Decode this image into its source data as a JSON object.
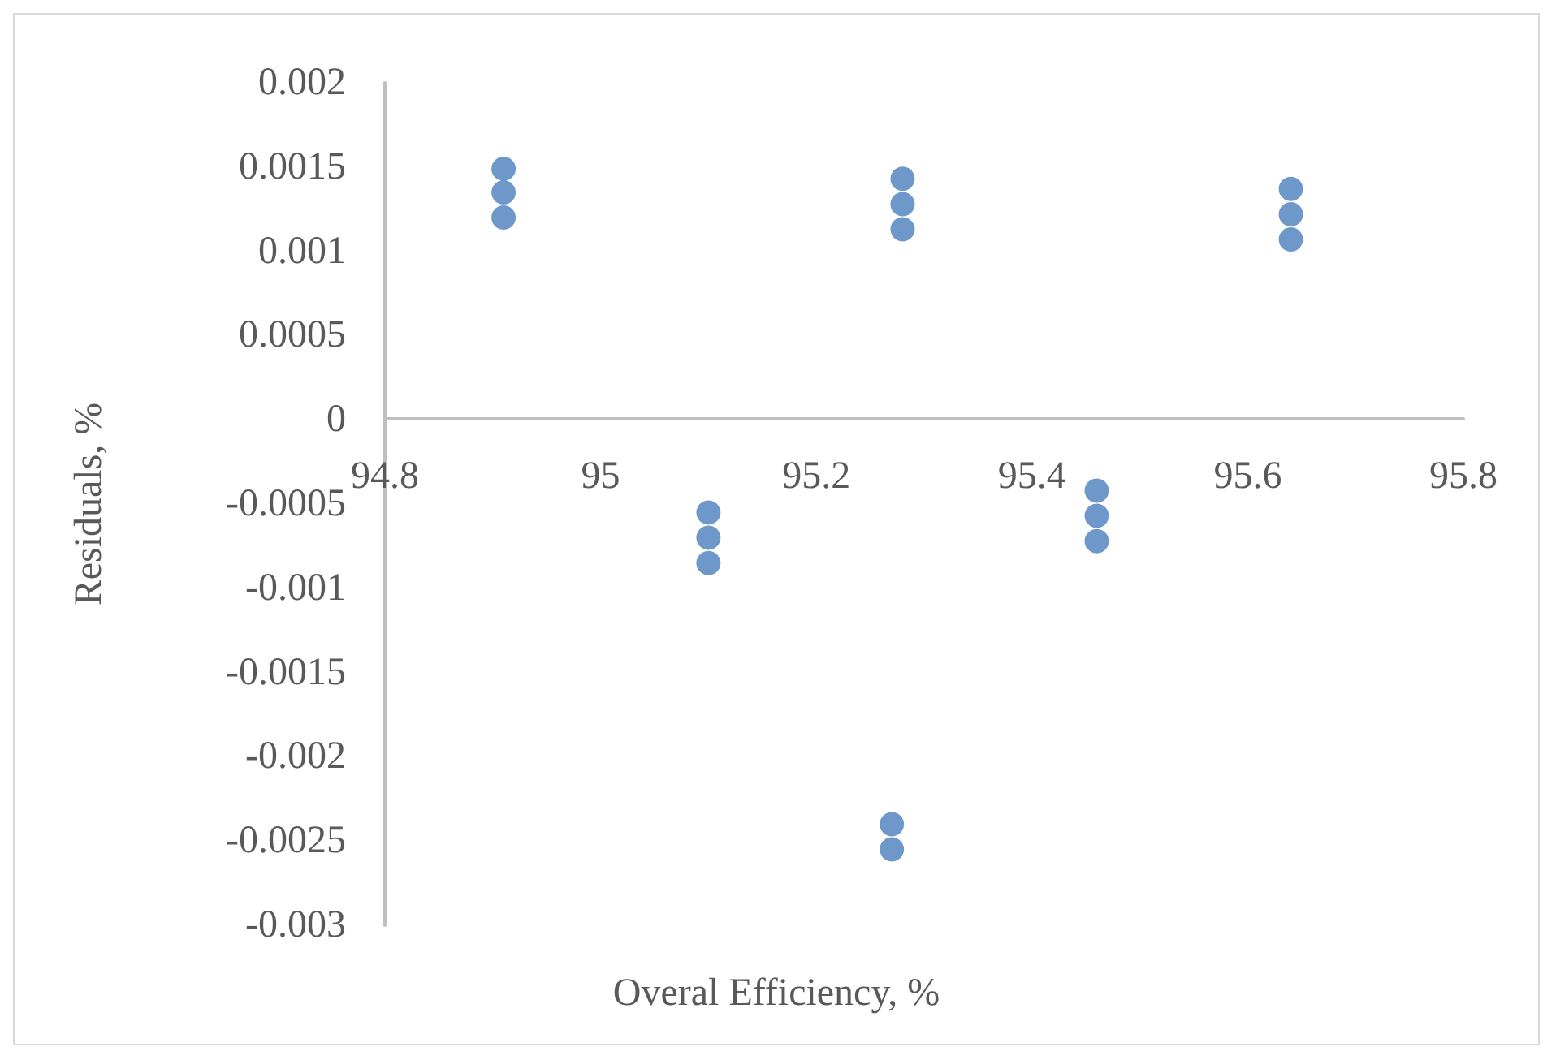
{
  "chart_data": {
    "type": "scatter",
    "xlabel": "Overal Efficiency, %",
    "ylabel": "Residuals, %",
    "x": [
      94.91,
      94.91,
      94.91,
      95.1,
      95.1,
      95.1,
      95.28,
      95.28,
      95.28,
      95.27,
      95.27,
      95.46,
      95.46,
      95.46,
      95.64,
      95.64,
      95.64
    ],
    "values": [
      0.00149,
      0.00135,
      0.0012,
      -0.00055,
      -0.0007,
      -0.00085,
      0.00143,
      0.00128,
      0.00113,
      -0.0024,
      -0.00255,
      -0.00042,
      -0.00057,
      -0.00072,
      0.00137,
      0.00122,
      0.00107
    ],
    "color": "#4a7ebb",
    "marker": "circle",
    "grid": false,
    "xlim": [
      94.8,
      95.8
    ],
    "xticks": [
      94.8,
      95,
      95.2,
      95.4,
      95.6,
      95.8
    ],
    "ylim": [
      -0.003,
      0.002
    ],
    "yticks": [
      -0.003,
      -0.0025,
      -0.002,
      -0.0015,
      -0.001,
      -0.0005,
      0,
      0.0005,
      0.001,
      0.0015,
      0.002
    ]
  }
}
